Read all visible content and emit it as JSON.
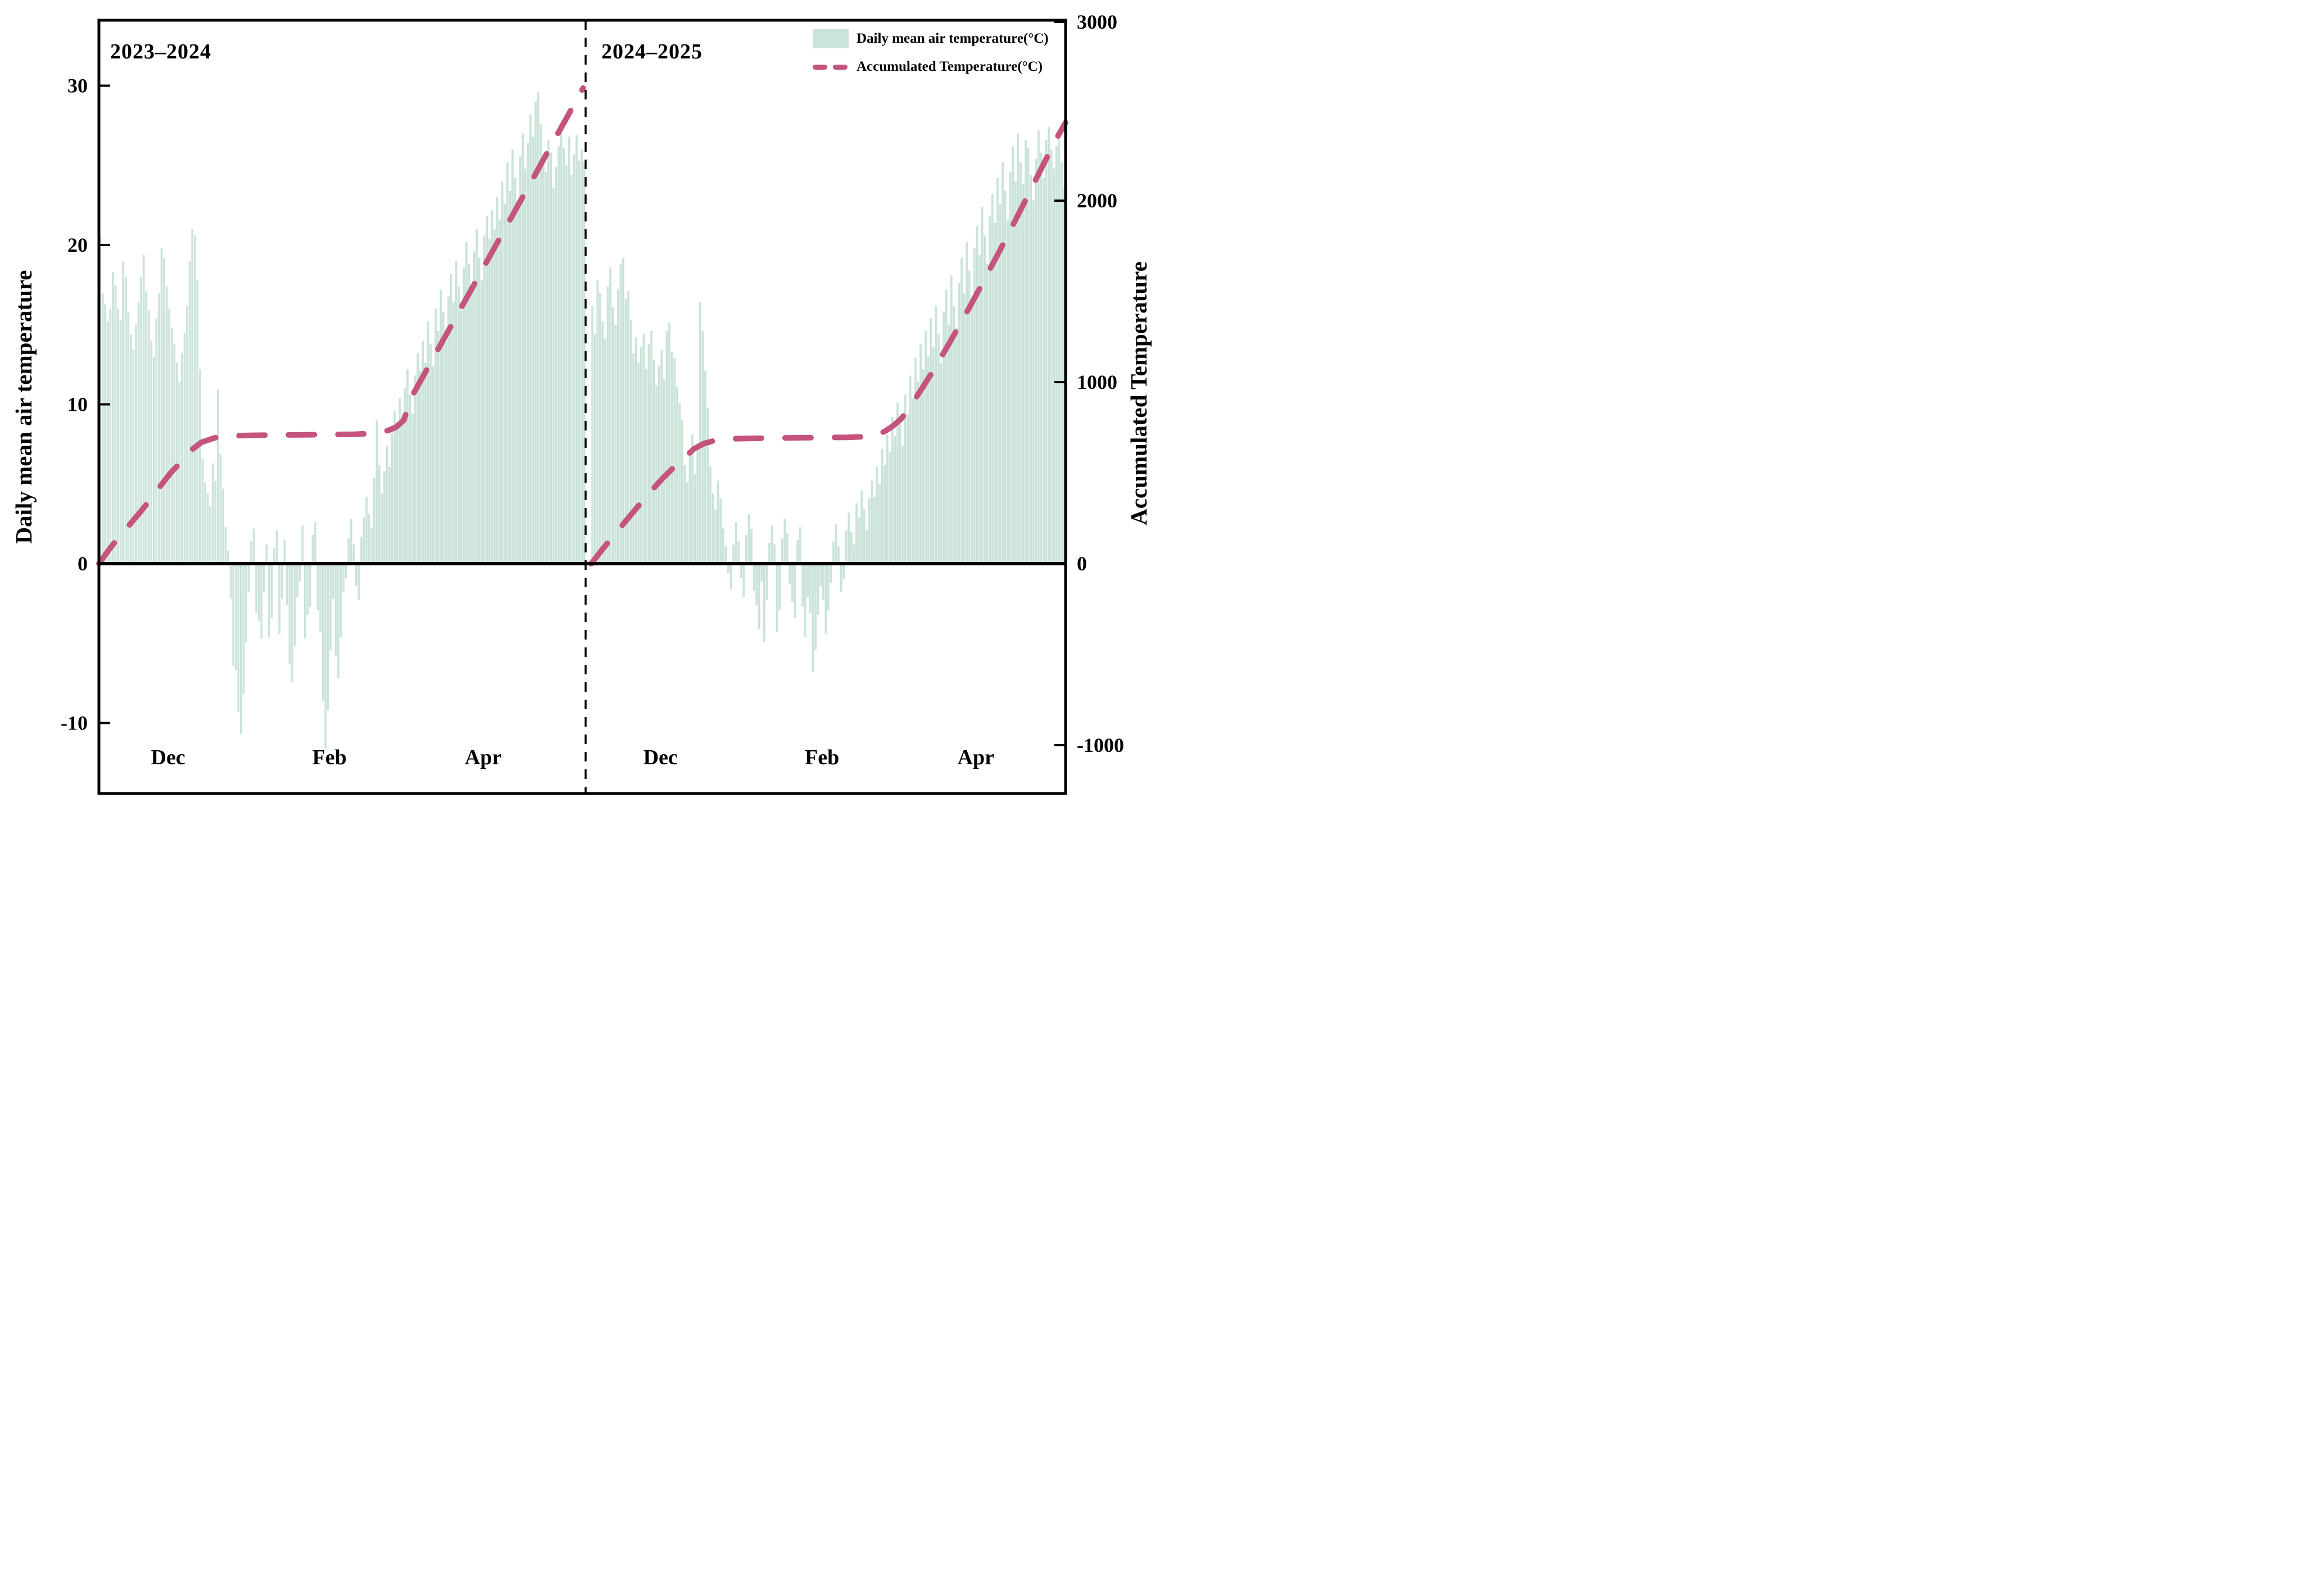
{
  "chart_data": {
    "type": "bar",
    "subtype": "dual-axis daily bars with accumulated dashed line, two seasons split by dashed divider",
    "colors": {
      "bar": "#cbe3d8",
      "line": "#c4537d",
      "divider": "#000000",
      "frame": "#000000"
    },
    "legend": [
      "Daily mean air temperature(°C)",
      "Accumulated Temperature(°C)"
    ],
    "left_axis": {
      "label": "Daily mean air temperature",
      "ticks": [
        -10,
        0,
        10,
        20,
        30
      ],
      "tick_labels": [
        "-10",
        "0",
        "10",
        "20",
        "30"
      ],
      "range": [
        -14.4,
        34.1
      ]
    },
    "right_axis": {
      "label": "Accumulated Temperature",
      "ticks": [
        -1000,
        0,
        1000,
        2000,
        3000
      ],
      "tick_labels": [
        "-1000",
        "0",
        "1000",
        "2000",
        "3000"
      ],
      "range": [
        -1290,
        3010
      ]
    },
    "x_axis": {
      "month_labels": [
        {
          "season": 0,
          "text": "Dec",
          "day": 27
        },
        {
          "season": 0,
          "text": "Feb",
          "day": 90
        },
        {
          "season": 0,
          "text": "Apr",
          "day": 150
        },
        {
          "season": 1,
          "text": "Dec",
          "day": 27
        },
        {
          "season": 1,
          "text": "Feb",
          "day": 90
        },
        {
          "season": 1,
          "text": "Apr",
          "day": 150
        }
      ],
      "grid": false
    },
    "seasons": [
      {
        "name": "2023–2024",
        "n_days": 190,
        "daily_mean_temp": [
          20.6,
          17.0,
          16.3,
          15.2,
          16.0,
          18.3,
          17.5,
          16.0,
          15.3,
          19.0,
          18.0,
          15.8,
          14.4,
          13.4,
          15.0,
          16.4,
          18.0,
          19.4,
          17.1,
          15.9,
          14.0,
          13.0,
          15.4,
          17.0,
          19.8,
          19.2,
          17.4,
          16.0,
          14.8,
          13.8,
          12.6,
          11.4,
          13.2,
          14.5,
          16.2,
          19.0,
          21.0,
          20.6,
          17.8,
          12.2,
          6.6,
          5.1,
          4.4,
          3.6,
          6.3,
          5.2,
          10.9,
          6.9,
          4.7,
          2.3,
          0.8,
          -2.2,
          -6.4,
          -6.7,
          -9.3,
          -10.7,
          -8.2,
          -4.9,
          -1.8,
          1.4,
          2.2,
          -3.1,
          -3.6,
          -4.7,
          -1.8,
          1.2,
          -4.6,
          -3.4,
          1.0,
          2.1,
          -4.4,
          -2.2,
          1.5,
          -2.6,
          -6.3,
          -7.4,
          -5.2,
          -2.1,
          -1.1,
          2.4,
          -4.7,
          -3.2,
          -2.7,
          1.8,
          2.6,
          -2.9,
          -4.3,
          -8.6,
          -11.6,
          -9.2,
          -5.4,
          -2.2,
          -5.8,
          -7.2,
          -4.6,
          -1.8,
          -0.9,
          1.6,
          2.8,
          1.2,
          -1.4,
          -2.3,
          1.7,
          2.9,
          4.2,
          3.1,
          2.2,
          5.4,
          9.0,
          6.2,
          4.4,
          5.8,
          7.4,
          6.1,
          8.2,
          9.6,
          8.4,
          10.4,
          9.2,
          11.0,
          12.2,
          10.6,
          9.4,
          11.8,
          13.2,
          12.1,
          14.0,
          12.6,
          15.2,
          13.8,
          12.4,
          16.0,
          14.6,
          17.2,
          15.8,
          13.9,
          16.8,
          18.2,
          16.4,
          19.0,
          17.4,
          15.9,
          18.6,
          20.2,
          18.8,
          17.0,
          19.6,
          21.0,
          19.2,
          17.8,
          20.6,
          21.8,
          20.4,
          22.2,
          21.0,
          23.0,
          21.6,
          24.0,
          22.6,
          25.2,
          23.4,
          26.0,
          24.2,
          22.8,
          25.6,
          27.0,
          24.8,
          26.4,
          28.2,
          26.8,
          29.0,
          29.6,
          27.6,
          25.4,
          24.6,
          26.6,
          25.8,
          23.6,
          24.9,
          26.2,
          27.4,
          26.1,
          25.0,
          26.8,
          24.4,
          25.7,
          26.9,
          25.3,
          26.0,
          25.2
        ],
        "accumulated_temp": [
          [
            0,
            0
          ],
          [
            4,
            78
          ],
          [
            8,
            150
          ],
          [
            12,
            215
          ],
          [
            16,
            282
          ],
          [
            20,
            352
          ],
          [
            24,
            428
          ],
          [
            28,
            500
          ],
          [
            32,
            560
          ],
          [
            36,
            625
          ],
          [
            40,
            668
          ],
          [
            44,
            688
          ],
          [
            47,
            700
          ],
          [
            52,
            704
          ],
          [
            60,
            707
          ],
          [
            70,
            709
          ],
          [
            80,
            710
          ],
          [
            90,
            711
          ],
          [
            100,
            713
          ],
          [
            107,
            718
          ],
          [
            110,
            724
          ],
          [
            113,
            734
          ],
          [
            116,
            752
          ],
          [
            119,
            790
          ],
          [
            122,
            917
          ],
          [
            126,
            1018
          ],
          [
            130,
            1120
          ],
          [
            134,
            1222
          ],
          [
            138,
            1323
          ],
          [
            142,
            1425
          ],
          [
            146,
            1526
          ],
          [
            150,
            1628
          ],
          [
            154,
            1730
          ],
          [
            158,
            1831
          ],
          [
            162,
            1933
          ],
          [
            166,
            2035
          ],
          [
            170,
            2136
          ],
          [
            174,
            2238
          ],
          [
            178,
            2340
          ],
          [
            182,
            2441
          ],
          [
            186,
            2543
          ],
          [
            189,
            2620
          ]
        ]
      },
      {
        "name": "2024–2025",
        "n_days": 185,
        "daily_mean_temp": [
          16.2,
          14.4,
          17.8,
          17.0,
          15.2,
          14.1,
          17.4,
          18.6,
          16.1,
          15.0,
          17.2,
          18.8,
          19.2,
          16.6,
          17.1,
          15.3,
          13.2,
          14.2,
          12.6,
          13.6,
          14.4,
          12.2,
          13.8,
          14.6,
          12.8,
          11.2,
          12.4,
          13.4,
          11.6,
          14.6,
          15.1,
          13.3,
          12.9,
          11.1,
          10.1,
          9.0,
          6.2,
          5.1,
          6.8,
          8.1,
          5.6,
          7.3,
          16.4,
          14.6,
          12.1,
          9.8,
          6.1,
          4.4,
          3.4,
          5.2,
          4.1,
          2.2,
          1.1,
          -0.6,
          -1.6,
          1.2,
          2.6,
          1.4,
          -0.9,
          -2.1,
          1.8,
          3.1,
          2.2,
          -1.7,
          -2.6,
          -4.1,
          -1.1,
          -4.9,
          -2.3,
          1.3,
          2.4,
          1.2,
          -4.3,
          -2.9,
          1.6,
          2.8,
          1.9,
          -1.3,
          -2.4,
          -3.4,
          1.5,
          2.3,
          -2.7,
          -4.6,
          -2.1,
          -3.1,
          -6.8,
          -5.4,
          -3.2,
          -1.4,
          -2.3,
          -4.4,
          -2.9,
          -1.2,
          1.4,
          2.5,
          1.1,
          -1.8,
          -1.0,
          2.1,
          3.2,
          2.0,
          1.2,
          3.8,
          2.9,
          4.6,
          3.4,
          2.1,
          4.1,
          5.2,
          4.2,
          6.1,
          5.0,
          7.2,
          6.2,
          8.1,
          7.0,
          9.2,
          8.0,
          10.1,
          8.8,
          7.4,
          10.6,
          9.4,
          11.8,
          10.4,
          12.9,
          11.4,
          13.8,
          12.2,
          14.6,
          13.0,
          15.4,
          13.6,
          16.2,
          14.4,
          12.6,
          15.8,
          17.2,
          15.0,
          18.1,
          16.2,
          14.8,
          17.6,
          19.2,
          17.0,
          20.2,
          18.4,
          16.6,
          19.8,
          21.2,
          19.4,
          22.4,
          20.6,
          18.8,
          21.8,
          23.2,
          21.4,
          24.2,
          22.6,
          25.2,
          23.4,
          21.6,
          24.6,
          26.2,
          24.0,
          27.0,
          25.2,
          23.8,
          26.6,
          26.1,
          24.4,
          22.8,
          25.4,
          27.2,
          25.8,
          24.2,
          26.6,
          27.4,
          26.0,
          24.8,
          26.2,
          27.0,
          25.2,
          23.6
        ],
        "accumulated_temp": [
          [
            0,
            0
          ],
          [
            4,
            72
          ],
          [
            8,
            142
          ],
          [
            12,
            210
          ],
          [
            16,
            278
          ],
          [
            20,
            345
          ],
          [
            24,
            410
          ],
          [
            28,
            472
          ],
          [
            32,
            528
          ],
          [
            36,
            580
          ],
          [
            40,
            632
          ],
          [
            44,
            662
          ],
          [
            48,
            678
          ],
          [
            55,
            688
          ],
          [
            70,
            692
          ],
          [
            85,
            694
          ],
          [
            100,
            696
          ],
          [
            108,
            700
          ],
          [
            112,
            712
          ],
          [
            115,
            733
          ],
          [
            118,
            762
          ],
          [
            121,
            800
          ],
          [
            125,
            880
          ],
          [
            129,
            965
          ],
          [
            133,
            1055
          ],
          [
            137,
            1150
          ],
          [
            141,
            1248
          ],
          [
            145,
            1348
          ],
          [
            149,
            1450
          ],
          [
            153,
            1555
          ],
          [
            157,
            1662
          ],
          [
            161,
            1770
          ],
          [
            165,
            1880
          ],
          [
            169,
            1992
          ],
          [
            173,
            2105
          ],
          [
            177,
            2218
          ],
          [
            181,
            2330
          ],
          [
            185,
            2430
          ]
        ]
      }
    ]
  }
}
